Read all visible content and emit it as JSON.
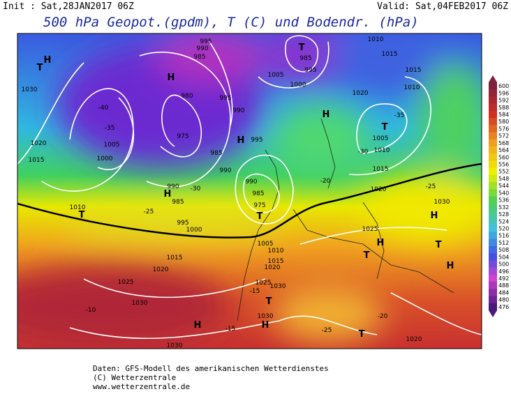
{
  "header": {
    "init": "Init : Sat,28JAN2017 06Z",
    "valid": "Valid: Sat,04FEB2017 06Z",
    "title": "500 hPa Geopot.(gpdm), T (C) und Bodendr. (hPa)"
  },
  "map_labels": [
    "H",
    "T",
    "1030",
    "1020",
    "1015",
    "1005",
    "1000",
    "-35",
    "-40",
    "995",
    "990",
    "985",
    "H",
    "980",
    "975",
    "985",
    "990",
    "H",
    "995",
    "995",
    "990",
    "T",
    "985",
    "995",
    "1000",
    "1005",
    "1010",
    "1015",
    "1015",
    "1010",
    "1020",
    "H",
    "T",
    "1005",
    "1010",
    "1015",
    "1020",
    "1030",
    "H",
    "T",
    "H",
    "1025",
    "H",
    "T",
    "-25",
    "-20",
    "-30",
    "-35",
    "990",
    "985",
    "975",
    "T",
    "H",
    "990",
    "985",
    "995",
    "1000",
    "T",
    "1010",
    "-25",
    "-30",
    "1005",
    "1010",
    "1015",
    "1020",
    "1015",
    "1020",
    "1025",
    "1025",
    "1030",
    "1030",
    "H",
    "T",
    "H",
    "1030",
    "-10",
    "-15",
    "-15",
    "-25",
    "-20",
    "T",
    "1020",
    "1030"
  ],
  "colorbar": {
    "ticks": [
      600,
      596,
      592,
      588,
      584,
      580,
      576,
      572,
      568,
      564,
      560,
      556,
      552,
      548,
      544,
      540,
      536,
      532,
      528,
      524,
      520,
      516,
      512,
      508,
      504,
      500,
      496,
      492,
      488,
      484,
      480,
      476
    ]
  },
  "footer": {
    "line1": "Daten: GFS-Modell des amerikanischen Wetterdienstes",
    "line2": "(C) Wetterzentrale",
    "line3": "www.wetterzentrale.de"
  }
}
